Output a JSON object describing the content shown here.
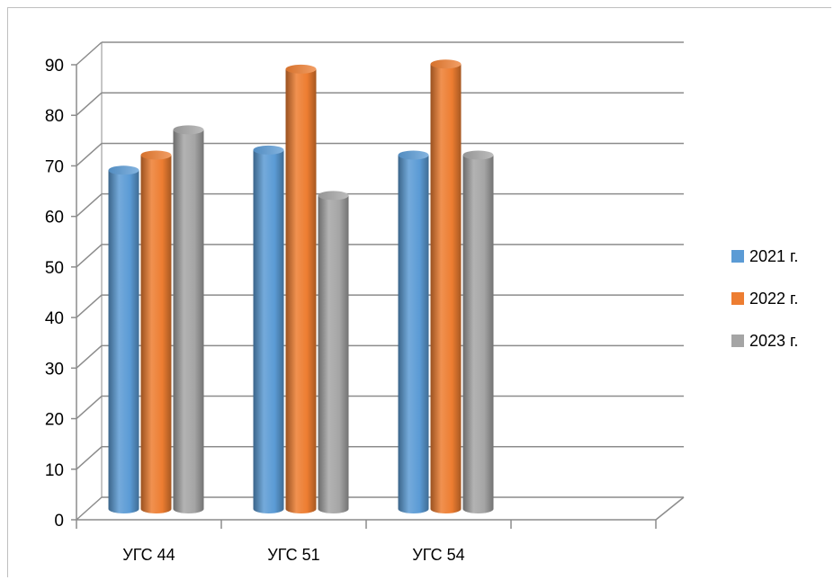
{
  "chart_data": {
    "type": "bar",
    "title": "",
    "xlabel": "",
    "ylabel": "",
    "categories": [
      "УГС 44",
      "УГС 51",
      "УГС 54"
    ],
    "series": [
      {
        "name": "2021  г.",
        "values": [
          67,
          71,
          70
        ],
        "color": "#5b9bd5"
      },
      {
        "name": "2022 г.",
        "values": [
          70,
          87,
          88
        ],
        "color": "#ed7d31"
      },
      {
        "name": "2023 г.",
        "values": [
          75,
          62,
          70
        ],
        "color": "#a5a5a5"
      }
    ],
    "ylim": [
      0,
      90
    ],
    "yticks": [
      "0",
      "10",
      "20",
      "30",
      "40",
      "50",
      "60",
      "70",
      "80",
      "90"
    ],
    "grid": true,
    "legend": "right",
    "style": "3d-cylinder"
  }
}
